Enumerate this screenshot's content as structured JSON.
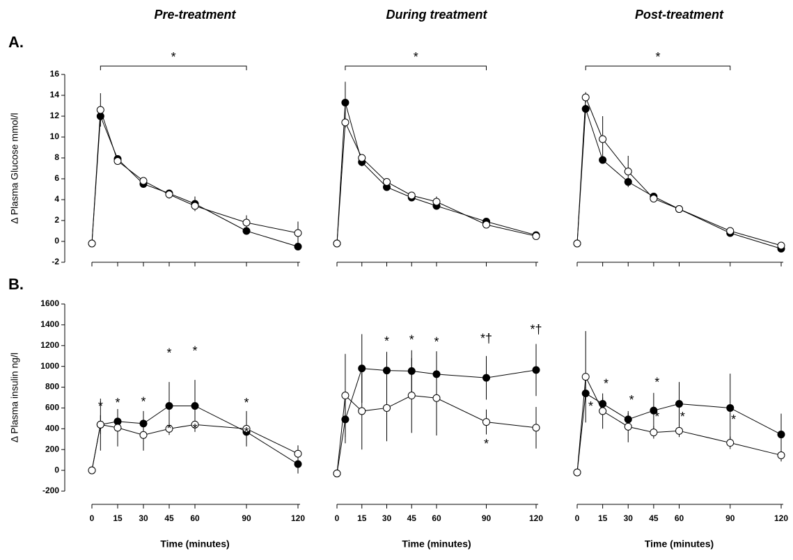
{
  "chart_data": [
    {
      "type": "line",
      "title": "Pre-treatment",
      "panel_label": "A.",
      "y_label": "Δ Plasma Glucose mmol/l",
      "x": [
        0,
        5,
        15,
        30,
        45,
        60,
        90,
        120
      ],
      "xlim": [
        0,
        120
      ],
      "ylim": [
        -2,
        16
      ],
      "yticks": [
        -2,
        0,
        2,
        4,
        6,
        8,
        10,
        12,
        14,
        16
      ],
      "series": [
        {
          "color": "#000000",
          "marker_fill": "#000000",
          "values": [
            -0.2,
            12.0,
            7.9,
            5.5,
            4.6,
            3.6,
            1.0,
            -0.5
          ],
          "errors": [
            0,
            0.5,
            0.3,
            0.3,
            0.3,
            0.7,
            0.3,
            0.3
          ]
        },
        {
          "color": "#000000",
          "marker_fill": "#ffffff",
          "values": [
            -0.2,
            12.6,
            7.7,
            5.8,
            4.5,
            3.4,
            1.8,
            0.8
          ],
          "errors": [
            0,
            1.6,
            0.3,
            0.3,
            0.4,
            0.5,
            0.7,
            1.1
          ]
        }
      ],
      "annotations": [
        {
          "text": "*",
          "x": [
            5,
            90
          ],
          "y": 16.8
        }
      ]
    },
    {
      "type": "line",
      "title": "During treatment",
      "x": [
        0,
        5,
        15,
        30,
        45,
        60,
        90,
        120
      ],
      "xlim": [
        0,
        120
      ],
      "ylim": [
        -2,
        16
      ],
      "series": [
        {
          "color": "#000000",
          "marker_fill": "#000000",
          "values": [
            -0.2,
            13.3,
            7.6,
            5.2,
            4.2,
            3.4,
            1.9,
            0.6
          ],
          "errors": [
            0,
            2.0,
            0.4,
            0.3,
            0.3,
            0.3,
            0.3,
            0.3
          ]
        },
        {
          "color": "#000000",
          "marker_fill": "#ffffff",
          "values": [
            -0.2,
            11.4,
            8.0,
            5.7,
            4.4,
            3.8,
            1.6,
            0.5
          ],
          "errors": [
            0,
            0.5,
            0.3,
            0.3,
            0.3,
            0.5,
            0.3,
            0.3
          ]
        }
      ],
      "annotations": [
        {
          "text": "*",
          "x": [
            5,
            90
          ],
          "y": 16.8
        }
      ]
    },
    {
      "type": "line",
      "title": "Post-treatment",
      "x": [
        0,
        5,
        15,
        30,
        45,
        60,
        90,
        120
      ],
      "xlim": [
        0,
        120
      ],
      "ylim": [
        -2,
        16
      ],
      "series": [
        {
          "color": "#000000",
          "marker_fill": "#000000",
          "values": [
            -0.2,
            12.7,
            7.8,
            5.7,
            4.3,
            3.1,
            0.8,
            -0.7
          ],
          "errors": [
            0,
            0.4,
            0.3,
            0.3,
            0.3,
            0.3,
            0.3,
            0.3
          ]
        },
        {
          "color": "#000000",
          "marker_fill": "#ffffff",
          "values": [
            -0.2,
            13.8,
            9.8,
            6.7,
            4.1,
            3.1,
            1.0,
            -0.4
          ],
          "errors": [
            0,
            0.5,
            2.2,
            1.5,
            0.3,
            0.3,
            0.3,
            0.3
          ]
        }
      ],
      "annotations": [
        {
          "text": "*",
          "x": [
            5,
            90
          ],
          "y": 16.8
        }
      ]
    },
    {
      "type": "line",
      "panel_label": "B.",
      "y_label": "Δ Plasma insulin  ng/l",
      "x_label": "Time (minutes)",
      "x": [
        0,
        5,
        15,
        30,
        45,
        60,
        90,
        120
      ],
      "xlim": [
        0,
        120
      ],
      "xticks": [
        0,
        15,
        30,
        45,
        60,
        90,
        120
      ],
      "ylim": [
        -200,
        1600
      ],
      "yticks": [
        -200,
        0,
        200,
        400,
        600,
        800,
        1000,
        1200,
        1400,
        1600
      ],
      "series": [
        {
          "color": "#000000",
          "marker_fill": "#000000",
          "values": [
            0,
            440,
            470,
            450,
            620,
            620,
            370,
            60
          ],
          "errors": [
            0,
            90,
            60,
            120,
            230,
            250,
            60,
            90
          ]
        },
        {
          "color": "#000000",
          "marker_fill": "#ffffff",
          "values": [
            0,
            440,
            410,
            340,
            400,
            440,
            400,
            160
          ],
          "errors": [
            0,
            250,
            180,
            150,
            60,
            60,
            170,
            80
          ]
        }
      ],
      "annotations": [
        {
          "text": "*",
          "x": 5,
          "y": 607
        },
        {
          "text": "*",
          "x": 15,
          "y": 640
        },
        {
          "text": "*",
          "x": 30,
          "y": 653
        },
        {
          "text": "*",
          "x": 45,
          "y": 1120
        },
        {
          "text": "*",
          "x": 60,
          "y": 1140
        },
        {
          "text": "*",
          "x": 90,
          "y": 640
        },
        {
          "text": "*",
          "x": 45,
          "y": 393
        },
        {
          "text": "*",
          "x": 60,
          "y": 393
        },
        {
          "text": "*",
          "x": 90,
          "y": 360
        }
      ]
    },
    {
      "type": "line",
      "x_label": "Time (minutes)",
      "x": [
        0,
        5,
        15,
        30,
        45,
        60,
        90,
        120
      ],
      "xlim": [
        0,
        120
      ],
      "xticks": [
        0,
        15,
        30,
        45,
        60,
        90,
        120
      ],
      "ylim": [
        -200,
        1600
      ],
      "series": [
        {
          "color": "#000000",
          "marker_fill": "#000000",
          "values": [
            -30,
            490,
            980,
            960,
            955,
            925,
            890,
            965
          ],
          "errors": [
            0,
            230,
            330,
            180,
            200,
            220,
            210,
            250
          ]
        },
        {
          "color": "#000000",
          "marker_fill": "#ffffff",
          "values": [
            -30,
            720,
            570,
            600,
            720,
            695,
            465,
            410
          ],
          "errors": [
            0,
            400,
            370,
            320,
            360,
            360,
            120,
            200
          ]
        }
      ],
      "annotations": [
        {
          "text": "*",
          "x": 30,
          "y": 1233
        },
        {
          "text": "*",
          "x": 45,
          "y": 1247
        },
        {
          "text": "*",
          "x": 60,
          "y": 1227
        },
        {
          "text": "*†",
          "x": 90,
          "y": 1260
        },
        {
          "text": "*†",
          "x": 120,
          "y": 1347
        },
        {
          "text": "*",
          "x": 90,
          "y": 247
        }
      ]
    },
    {
      "type": "line",
      "x_label": "Time (minutes)",
      "x": [
        0,
        5,
        15,
        30,
        45,
        60,
        90,
        120
      ],
      "xlim": [
        0,
        120
      ],
      "xticks": [
        0,
        15,
        30,
        45,
        60,
        90,
        120
      ],
      "ylim": [
        -200,
        1600
      ],
      "series": [
        {
          "color": "#000000",
          "marker_fill": "#000000",
          "values": [
            -20,
            740,
            640,
            490,
            575,
            640,
            600,
            345
          ],
          "errors": [
            0,
            60,
            60,
            60,
            170,
            210,
            330,
            200
          ]
        },
        {
          "color": "#000000",
          "marker_fill": "#ffffff",
          "values": [
            -20,
            900,
            570,
            420,
            365,
            380,
            265,
            145
          ],
          "errors": [
            0,
            440,
            170,
            150,
            60,
            60,
            60,
            60
          ]
        }
      ],
      "annotations": [
        {
          "text": "*",
          "x": 8,
          "y": 607
        },
        {
          "text": "*",
          "x": 17,
          "y": 827
        },
        {
          "text": "*",
          "x": 32,
          "y": 667
        },
        {
          "text": "*",
          "x": 47,
          "y": 840
        },
        {
          "text": "*",
          "x": 47,
          "y": 507
        },
        {
          "text": "*",
          "x": 62,
          "y": 507
        },
        {
          "text": "*",
          "x": 92,
          "y": 480
        }
      ]
    }
  ]
}
